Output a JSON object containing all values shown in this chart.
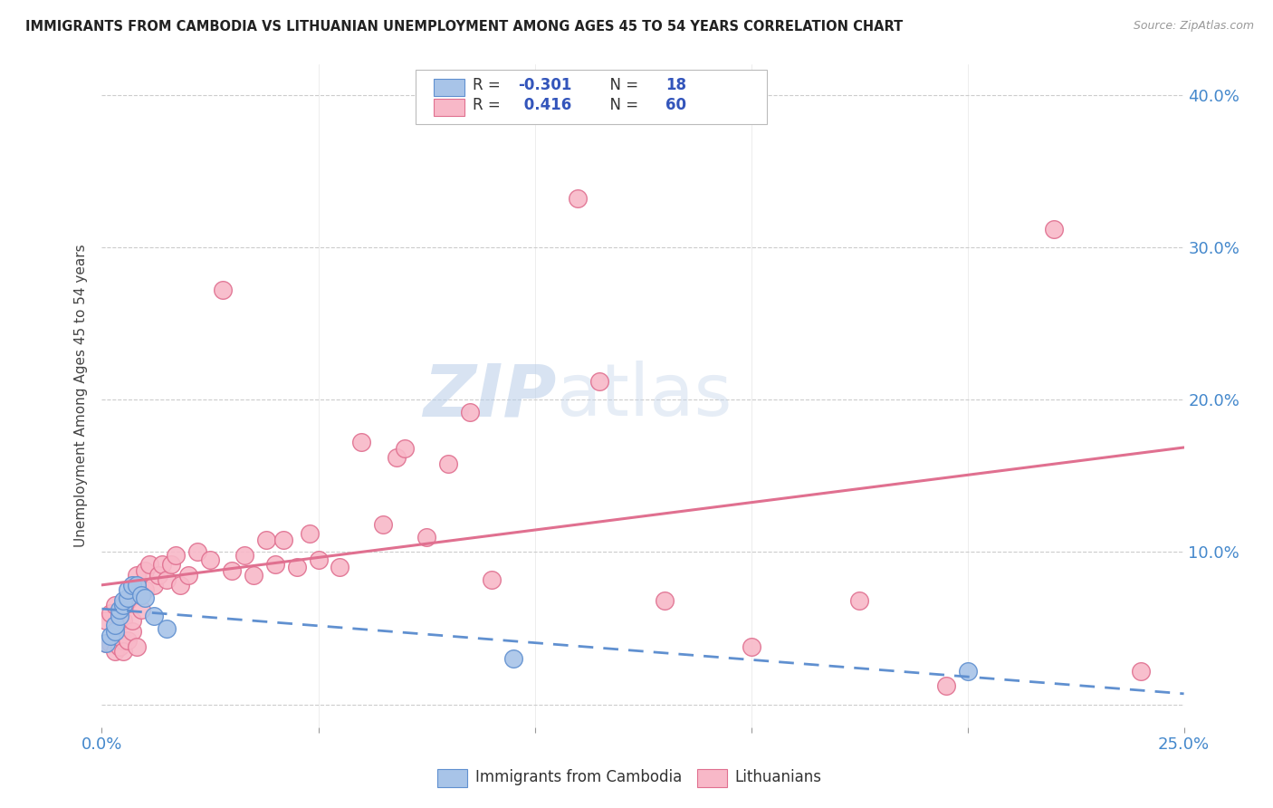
{
  "title": "IMMIGRANTS FROM CAMBODIA VS LITHUANIAN UNEMPLOYMENT AMONG AGES 45 TO 54 YEARS CORRELATION CHART",
  "source": "Source: ZipAtlas.com",
  "ylabel": "Unemployment Among Ages 45 to 54 years",
  "xlim": [
    0.0,
    0.25
  ],
  "ylim": [
    -0.015,
    0.42
  ],
  "xticks": [
    0.0,
    0.05,
    0.1,
    0.15,
    0.2,
    0.25
  ],
  "yticks": [
    0.0,
    0.1,
    0.2,
    0.3,
    0.4
  ],
  "xtick_labels": [
    "0.0%",
    "",
    "",
    "",
    "",
    "25.0%"
  ],
  "ytick_labels_right": [
    "",
    "10.0%",
    "20.0%",
    "30.0%",
    "40.0%"
  ],
  "watermark_zip": "ZIP",
  "watermark_atlas": "atlas",
  "legend_r": [
    "-0.301",
    "0.416"
  ],
  "legend_n": [
    "18",
    "60"
  ],
  "blue_fill": "#A8C4E8",
  "blue_edge": "#6090D0",
  "pink_fill": "#F8B8C8",
  "pink_edge": "#E07090",
  "blue_line": "#6090D0",
  "pink_line": "#E07090",
  "cambodia_x": [
    0.001,
    0.002,
    0.003,
    0.003,
    0.004,
    0.004,
    0.005,
    0.005,
    0.006,
    0.006,
    0.007,
    0.008,
    0.009,
    0.01,
    0.012,
    0.015,
    0.095,
    0.2
  ],
  "cambodia_y": [
    0.04,
    0.045,
    0.048,
    0.052,
    0.058,
    0.062,
    0.065,
    0.068,
    0.07,
    0.075,
    0.078,
    0.078,
    0.072,
    0.07,
    0.058,
    0.05,
    0.03,
    0.022
  ],
  "lithuanian_x": [
    0.001,
    0.001,
    0.002,
    0.002,
    0.003,
    0.003,
    0.004,
    0.004,
    0.005,
    0.005,
    0.005,
    0.006,
    0.006,
    0.007,
    0.007,
    0.008,
    0.008,
    0.008,
    0.009,
    0.009,
    0.01,
    0.01,
    0.011,
    0.012,
    0.013,
    0.014,
    0.015,
    0.016,
    0.017,
    0.018,
    0.02,
    0.022,
    0.025,
    0.028,
    0.03,
    0.033,
    0.035,
    0.038,
    0.04,
    0.042,
    0.045,
    0.048,
    0.05,
    0.055,
    0.06,
    0.065,
    0.068,
    0.07,
    0.075,
    0.08,
    0.085,
    0.09,
    0.11,
    0.115,
    0.13,
    0.15,
    0.175,
    0.195,
    0.22,
    0.24
  ],
  "lithuanian_y": [
    0.04,
    0.055,
    0.04,
    0.06,
    0.035,
    0.065,
    0.038,
    0.058,
    0.042,
    0.055,
    0.035,
    0.042,
    0.068,
    0.048,
    0.055,
    0.038,
    0.072,
    0.085,
    0.062,
    0.072,
    0.075,
    0.088,
    0.092,
    0.078,
    0.085,
    0.092,
    0.082,
    0.092,
    0.098,
    0.078,
    0.085,
    0.1,
    0.095,
    0.272,
    0.088,
    0.098,
    0.085,
    0.108,
    0.092,
    0.108,
    0.09,
    0.112,
    0.095,
    0.09,
    0.172,
    0.118,
    0.162,
    0.168,
    0.11,
    0.158,
    0.192,
    0.082,
    0.332,
    0.212,
    0.068,
    0.038,
    0.068,
    0.012,
    0.312,
    0.022
  ]
}
